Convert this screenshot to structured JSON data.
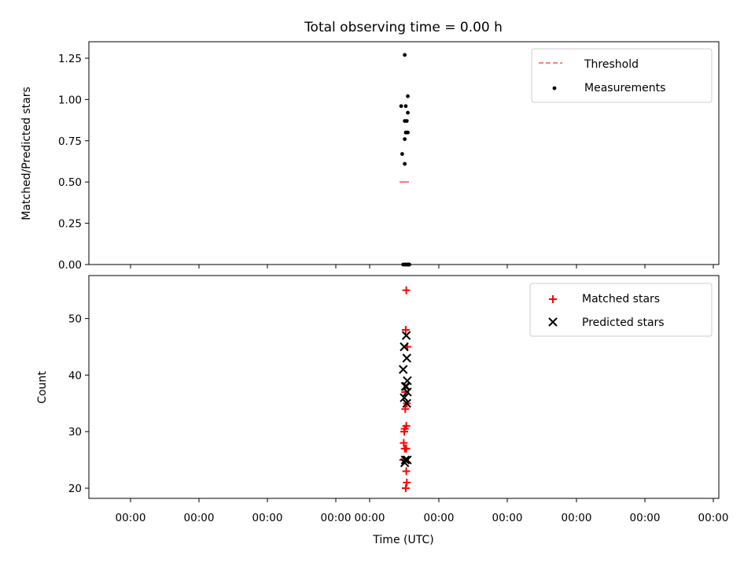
{
  "chart_data": [
    {
      "type": "scatter",
      "title": "Total observing time = 0.00 h",
      "ylabel": "Matched/Predicted stars",
      "xlabel": "",
      "ylim": [
        0,
        1.35
      ],
      "y_ticks": [
        "0.00",
        "0.25",
        "0.50",
        "0.75",
        "1.00",
        "1.25"
      ],
      "y_tick_values": [
        0,
        0.25,
        0.5,
        0.75,
        1.0,
        1.25
      ],
      "grid": false,
      "legend_position": "top-right",
      "threshold": {
        "name": "Threshold",
        "value": 0.5,
        "color": "#ff7070",
        "style": "dashed"
      },
      "series": [
        {
          "name": "Measurements",
          "marker": "dot",
          "color": "#000000",
          "x": [
            0.05,
            0.35,
            -0.3,
            0.15,
            0.35,
            0.05,
            0.25,
            0.15,
            0.35,
            0.05,
            -0.2,
            0.05,
            0.45,
            -0.1,
            0.0,
            0.1,
            0.2,
            0.3,
            0.4,
            0.5
          ],
          "y": [
            1.27,
            1.02,
            0.96,
            0.96,
            0.92,
            0.87,
            0.87,
            0.8,
            0.8,
            0.76,
            0.67,
            0.61,
            0.0,
            0.0,
            0.0,
            0.0,
            0.0,
            0.0,
            0.0,
            0.0
          ]
        }
      ]
    },
    {
      "type": "scatter",
      "title": "",
      "ylabel": "Count",
      "xlabel": "Time (UTC)",
      "ylim": [
        18.2,
        57.6
      ],
      "y_ticks": [
        "20",
        "30",
        "40",
        "50"
      ],
      "y_tick_values": [
        20,
        30,
        40,
        50
      ],
      "x_tick_labels": [
        "00:00",
        "00:00",
        "00:00",
        "00:00",
        "00:00",
        "00:00",
        "00:00",
        "00:00",
        "00:00",
        "00:00"
      ],
      "grid": false,
      "legend_position": "top-right",
      "series": [
        {
          "name": "Matched stars",
          "marker": "plus",
          "color": "#ff0000",
          "x": [
            0.2,
            0.15,
            0.3,
            0.1,
            0.25,
            0.1,
            0.2,
            0.05,
            0.0,
            -0.05,
            0.2,
            0.05,
            -0.1,
            0.2,
            0.25,
            0.15
          ],
          "y": [
            55,
            48,
            45,
            37,
            35,
            34,
            31,
            30.5,
            30,
            28,
            27,
            27,
            25,
            23,
            21,
            20
          ]
        },
        {
          "name": "Predicted stars",
          "marker": "x",
          "color": "#000000",
          "x": [
            0.2,
            0.0,
            0.25,
            -0.1,
            0.3,
            0.1,
            0.2,
            0.3,
            0.0,
            0.25,
            0.1,
            0.3,
            0.05
          ],
          "y": [
            47,
            45,
            43,
            41,
            39,
            38,
            38,
            37,
            36,
            35,
            25,
            25,
            24.5
          ]
        }
      ]
    }
  ]
}
